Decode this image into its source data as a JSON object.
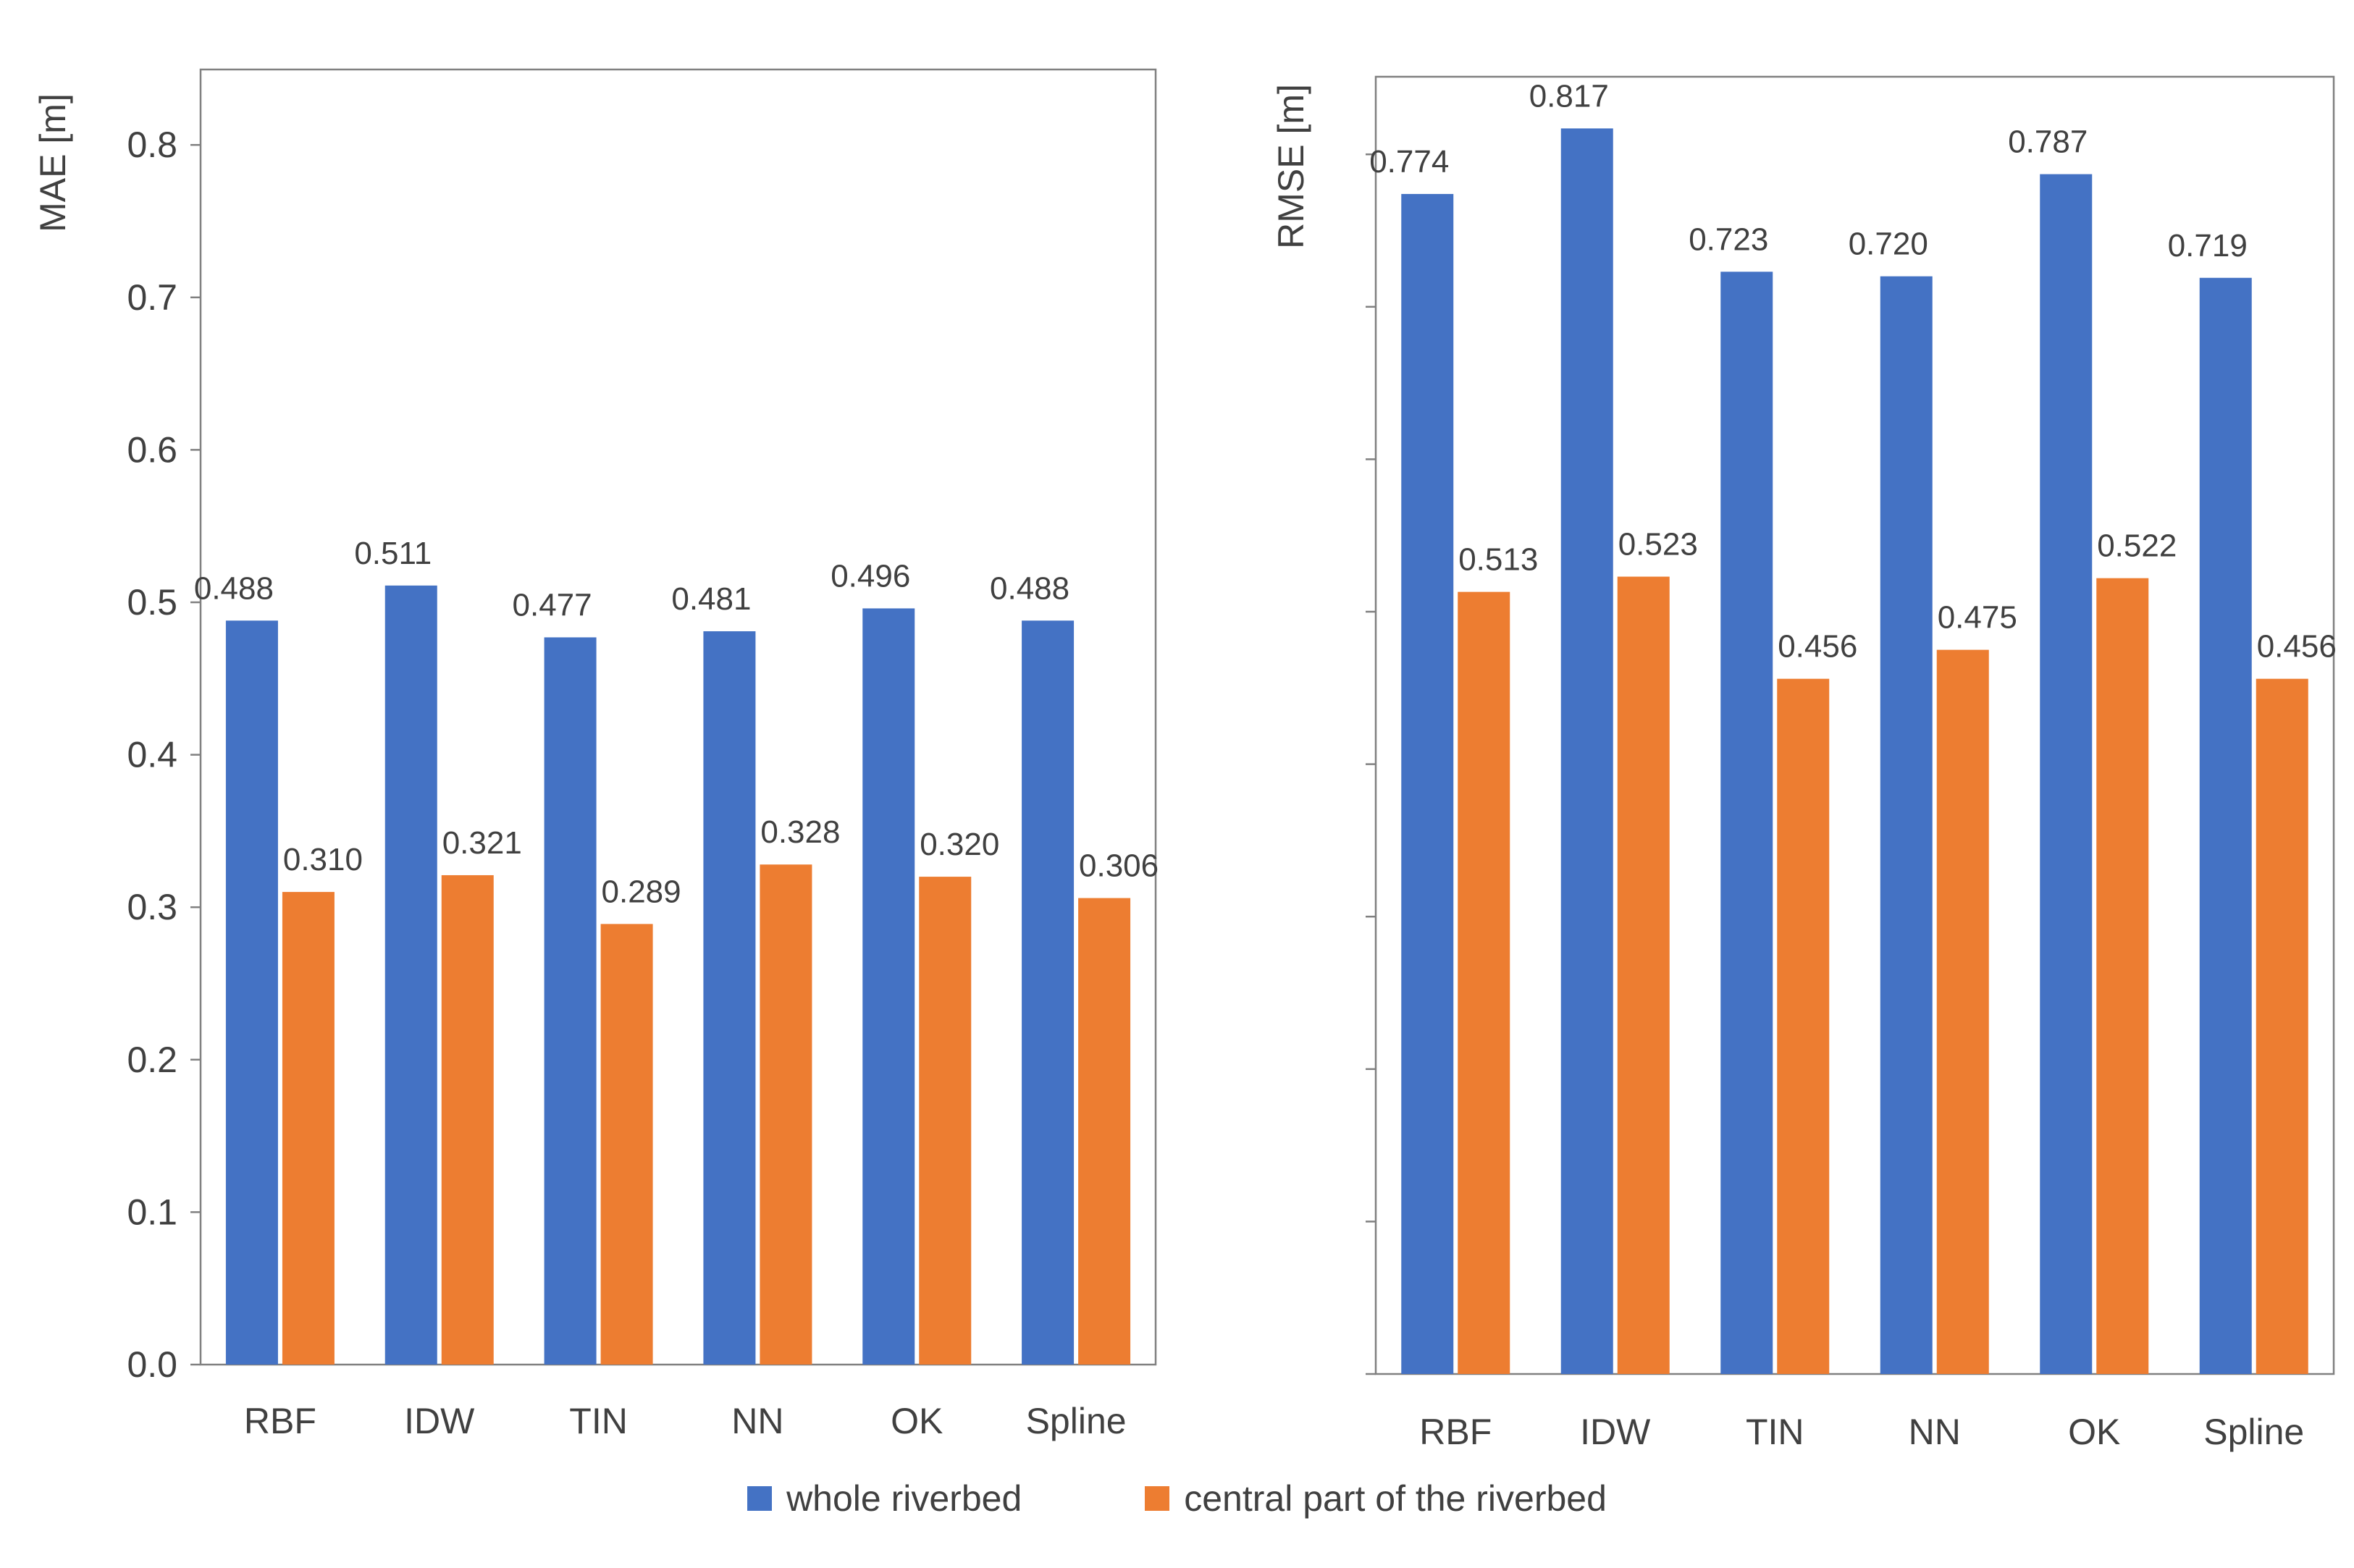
{
  "colors": {
    "series1": "#4472C4",
    "series2": "#ED7D31",
    "axis": "#808080",
    "text": "#404040"
  },
  "legend": {
    "series1": "whole riverbed",
    "series2": "central part of the riverbed"
  },
  "chart_data": [
    {
      "type": "bar",
      "title": "",
      "xlabel": "",
      "ylabel": "MAE [m]",
      "ylim": [
        0,
        0.85
      ],
      "yticks": [
        "0.0",
        "0.1",
        "0.2",
        "0.3",
        "0.4",
        "0.5",
        "0.6",
        "0.7",
        "0.8"
      ],
      "categories": [
        "RBF",
        "IDW",
        "TIN",
        "NN",
        "OK",
        "Spline"
      ],
      "series": [
        {
          "name": "whole riverbed",
          "values": [
            0.488,
            0.511,
            0.477,
            0.481,
            0.496,
            0.488
          ],
          "labels": [
            "0.488",
            "0.511",
            "0.477",
            "0.481",
            "0.496",
            "0.488"
          ]
        },
        {
          "name": "central part of the riverbed",
          "values": [
            0.31,
            0.321,
            0.289,
            0.328,
            0.32,
            0.306
          ],
          "labels": [
            "0.310",
            "0.321",
            "0.289",
            "0.328",
            "0.320",
            "0.306"
          ]
        }
      ],
      "grid": false
    },
    {
      "type": "bar",
      "title": "",
      "xlabel": "",
      "ylabel": "RMSE [m]",
      "ylim": [
        0,
        0.85
      ],
      "yticks": [],
      "categories": [
        "RBF",
        "IDW",
        "TIN",
        "NN",
        "OK",
        "Spline"
      ],
      "series": [
        {
          "name": "whole riverbed",
          "values": [
            0.774,
            0.817,
            0.723,
            0.72,
            0.787,
            0.719
          ],
          "labels": [
            "0.774",
            "0.817",
            "0.723",
            "0.720",
            "0.787",
            "0.719"
          ]
        },
        {
          "name": "central part of the riverbed",
          "values": [
            0.513,
            0.523,
            0.456,
            0.475,
            0.522,
            0.456
          ],
          "labels": [
            "0.513",
            "0.523",
            "0.456",
            "0.475",
            "0.522",
            "0.456"
          ]
        }
      ],
      "grid": false
    }
  ]
}
